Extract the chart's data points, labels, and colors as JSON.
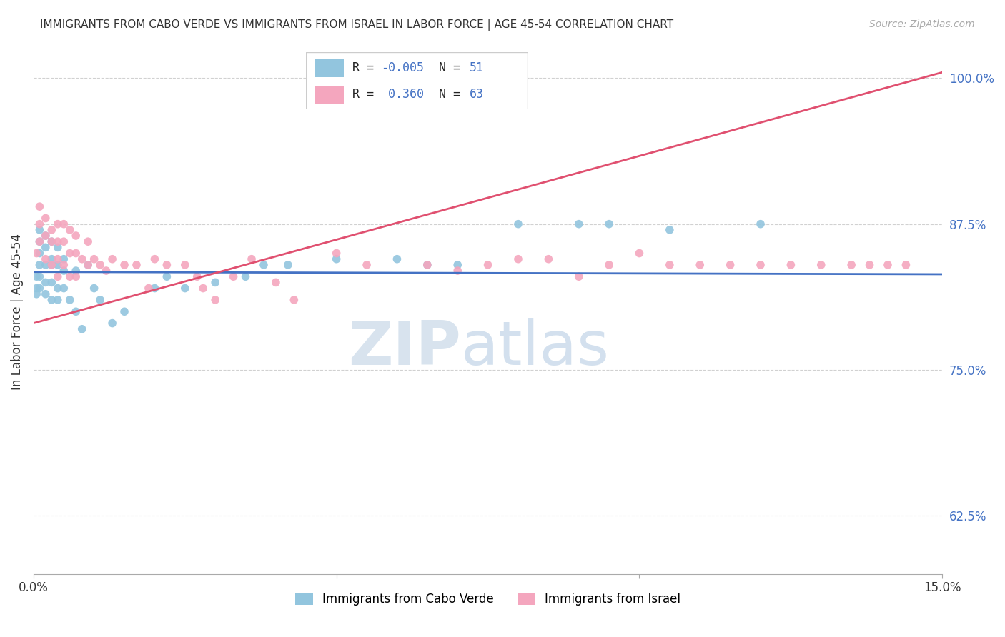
{
  "title": "IMMIGRANTS FROM CABO VERDE VS IMMIGRANTS FROM ISRAEL IN LABOR FORCE | AGE 45-54 CORRELATION CHART",
  "source": "Source: ZipAtlas.com",
  "ylabel": "In Labor Force | Age 45-54",
  "xlim": [
    0.0,
    0.15
  ],
  "ylim": [
    0.575,
    1.025
  ],
  "yticks": [
    0.625,
    0.75,
    0.875,
    1.0
  ],
  "ytick_labels": [
    "62.5%",
    "75.0%",
    "87.5%",
    "100.0%"
  ],
  "xticks": [
    0.0,
    0.05,
    0.1,
    0.15
  ],
  "xtick_labels": [
    "0.0%",
    "",
    "",
    "15.0%"
  ],
  "cabo_verde_R": -0.005,
  "cabo_verde_N": 51,
  "israel_R": 0.36,
  "israel_N": 63,
  "cabo_verde_color": "#92c5de",
  "israel_color": "#f4a6be",
  "cabo_verde_line_color": "#4472c4",
  "israel_line_color": "#e05070",
  "cabo_verde_line_y0": 0.834,
  "cabo_verde_line_y1": 0.832,
  "israel_line_y0": 0.79,
  "israel_line_y1": 1.005,
  "cabo_verde_x": [
    0.0005,
    0.0005,
    0.0005,
    0.001,
    0.001,
    0.001,
    0.001,
    0.001,
    0.001,
    0.002,
    0.002,
    0.002,
    0.002,
    0.002,
    0.003,
    0.003,
    0.003,
    0.003,
    0.003,
    0.004,
    0.004,
    0.004,
    0.004,
    0.005,
    0.005,
    0.005,
    0.006,
    0.007,
    0.007,
    0.008,
    0.009,
    0.01,
    0.011,
    0.013,
    0.015,
    0.02,
    0.022,
    0.025,
    0.03,
    0.035,
    0.038,
    0.042,
    0.05,
    0.06,
    0.065,
    0.07,
    0.08,
    0.09,
    0.095,
    0.105,
    0.12
  ],
  "cabo_verde_y": [
    0.83,
    0.82,
    0.815,
    0.87,
    0.86,
    0.85,
    0.84,
    0.83,
    0.82,
    0.865,
    0.855,
    0.84,
    0.825,
    0.815,
    0.86,
    0.845,
    0.84,
    0.825,
    0.81,
    0.855,
    0.84,
    0.82,
    0.81,
    0.845,
    0.835,
    0.82,
    0.81,
    0.835,
    0.8,
    0.785,
    0.84,
    0.82,
    0.81,
    0.79,
    0.8,
    0.82,
    0.83,
    0.82,
    0.825,
    0.83,
    0.84,
    0.84,
    0.845,
    0.845,
    0.84,
    0.84,
    0.875,
    0.875,
    0.875,
    0.87,
    0.875
  ],
  "israel_x": [
    0.0005,
    0.001,
    0.001,
    0.001,
    0.002,
    0.002,
    0.002,
    0.003,
    0.003,
    0.003,
    0.004,
    0.004,
    0.004,
    0.004,
    0.005,
    0.005,
    0.005,
    0.006,
    0.006,
    0.006,
    0.007,
    0.007,
    0.007,
    0.008,
    0.009,
    0.009,
    0.01,
    0.011,
    0.012,
    0.013,
    0.015,
    0.017,
    0.019,
    0.02,
    0.022,
    0.025,
    0.027,
    0.028,
    0.03,
    0.033,
    0.036,
    0.04,
    0.043,
    0.05,
    0.055,
    0.065,
    0.07,
    0.075,
    0.08,
    0.085,
    0.09,
    0.095,
    0.1,
    0.105,
    0.11,
    0.115,
    0.12,
    0.125,
    0.13,
    0.135,
    0.138,
    0.141,
    0.144
  ],
  "israel_y": [
    0.85,
    0.89,
    0.875,
    0.86,
    0.88,
    0.865,
    0.845,
    0.87,
    0.86,
    0.84,
    0.875,
    0.86,
    0.845,
    0.83,
    0.875,
    0.86,
    0.84,
    0.87,
    0.85,
    0.83,
    0.865,
    0.85,
    0.83,
    0.845,
    0.86,
    0.84,
    0.845,
    0.84,
    0.835,
    0.845,
    0.84,
    0.84,
    0.82,
    0.845,
    0.84,
    0.84,
    0.83,
    0.82,
    0.81,
    0.83,
    0.845,
    0.825,
    0.81,
    0.85,
    0.84,
    0.84,
    0.835,
    0.84,
    0.845,
    0.845,
    0.83,
    0.84,
    0.85,
    0.84,
    0.84,
    0.84,
    0.84,
    0.84,
    0.84,
    0.84,
    0.84,
    0.84,
    0.84
  ]
}
